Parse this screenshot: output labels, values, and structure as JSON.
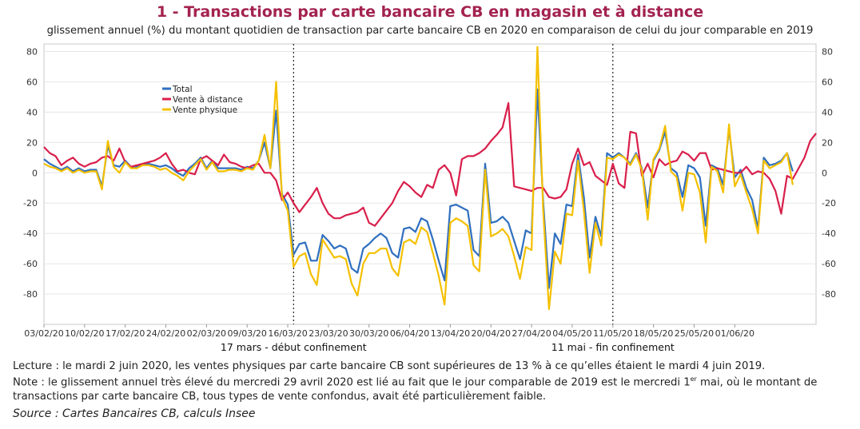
{
  "title": "1 - Transactions par carte bancaire CB en magasin et à distance",
  "subtitle": "glissement annuel (%) du montant quotidien de transaction par carte bancaire CB en 2020 en comparaison de celui du jour comparable en 2019",
  "footer": {
    "lecture": "Lecture : le mardi 2 juin 2020, les ventes physiques par carte bancaire CB sont supérieures de 13 % à ce qu’elles étaient le mardi 4 juin 2019.",
    "note_part1": "Note : le glissement annuel très élevé du mercredi 29 avril 2020 est lié au fait que le jour comparable de 2019 est le mercredi 1",
    "note_sup": "er",
    "note_part2": " mai, où le montant de",
    "note_line2": "transactions par carte bancaire CB, tous types de vente confondus, avait été particulièrement faible.",
    "source": "Source : Cartes Bancaires CB, calculs Insee"
  },
  "chart_data": {
    "type": "line",
    "start_date": "2020-02-03",
    "ylim": [
      -100,
      85
    ],
    "yticks": [
      80,
      60,
      40,
      20,
      0,
      -20,
      -40,
      -60,
      -80
    ],
    "xtick_labels": [
      "03/02/20",
      "10/02/20",
      "17/02/20",
      "24/02/20",
      "02/03/20",
      "09/03/20",
      "16/03/20",
      "23/03/20",
      "30/03/20",
      "06/04/20",
      "13/04/20",
      "20/04/20",
      "27/04/20",
      "04/05/20",
      "11/05/20",
      "18/05/20",
      "25/05/20",
      "01/06/20"
    ],
    "annotations": [
      {
        "date": "2020-03-17",
        "label": "17 mars - début confinement"
      },
      {
        "date": "2020-05-11",
        "label": "11 mai - fin confinement"
      }
    ],
    "legend": "top-left",
    "series": [
      {
        "name": "Total",
        "color": "#2f6fbf",
        "values": [
          9,
          6,
          4,
          2,
          4,
          1,
          3,
          1,
          2,
          2,
          -9,
          18,
          5,
          4,
          8,
          4,
          4,
          5,
          6,
          5,
          4,
          5,
          3,
          0,
          -2,
          3,
          6,
          10,
          3,
          8,
          3,
          3,
          3,
          3,
          2,
          4,
          3,
          8,
          20,
          3,
          41,
          -14,
          -21,
          -54,
          -47,
          -46,
          -58,
          -58,
          -41,
          -45,
          -50,
          -48,
          -50,
          -63,
          -66,
          -50,
          -47,
          -43,
          -40,
          -43,
          -53,
          -56,
          -37,
          -36,
          -39,
          -30,
          -32,
          -44,
          -58,
          -71,
          -22,
          -21,
          -23,
          -25,
          -51,
          -55,
          6,
          -33,
          -32,
          -29,
          -33,
          -45,
          -57,
          -38,
          -40,
          55,
          -19,
          -76,
          -40,
          -47,
          -21,
          -22,
          12,
          -16,
          -56,
          -29,
          -42,
          13,
          10,
          13,
          10,
          6,
          13,
          3,
          -23,
          8,
          15,
          27,
          3,
          0,
          -16,
          5,
          3,
          -3,
          -35,
          5,
          3,
          -8,
          29,
          -3,
          2,
          -10,
          -18,
          -37,
          10,
          5,
          6,
          8,
          13,
          1
        ]
      },
      {
        "name": "Vente à distance",
        "color": "#d91f4b",
        "values": [
          17,
          13,
          11,
          5,
          8,
          10,
          6,
          4,
          6,
          7,
          10,
          11,
          8,
          16,
          7,
          4,
          5,
          6,
          7,
          8,
          10,
          13,
          6,
          1,
          2,
          0,
          -1,
          9,
          11,
          8,
          5,
          12,
          7,
          6,
          4,
          3,
          5,
          6,
          0,
          0,
          -5,
          -18,
          -13,
          -20,
          -26,
          -21,
          -16,
          -10,
          -20,
          -27,
          -30,
          -30,
          -28,
          -27,
          -26,
          -23,
          -33,
          -35,
          -30,
          -25,
          -20,
          -12,
          -6,
          -9,
          -13,
          -16,
          -8,
          -10,
          2,
          5,
          0,
          -15,
          9,
          11,
          11,
          13,
          16,
          21,
          25,
          30,
          46,
          -9,
          -10,
          -11,
          -12,
          -10,
          -10,
          -16,
          -17,
          -16,
          -11,
          6,
          16,
          5,
          7,
          -2,
          -5,
          -8,
          6,
          -7,
          -10,
          27,
          26,
          -2,
          6,
          -3,
          9,
          5,
          7,
          8,
          14,
          12,
          8,
          13,
          13,
          2,
          3,
          2,
          1,
          0,
          0,
          4,
          -1,
          1,
          0,
          -4,
          -12,
          -27,
          -2,
          -4,
          3,
          10,
          21,
          26
        ]
      },
      {
        "name": "Vente physique",
        "color": "#f5c000",
        "values": [
          6,
          4,
          3,
          1,
          3,
          0,
          2,
          0,
          1,
          1,
          -11,
          21,
          4,
          0,
          7,
          3,
          3,
          5,
          5,
          4,
          2,
          3,
          0,
          -2,
          -5,
          1,
          5,
          9,
          2,
          7,
          1,
          1,
          2,
          2,
          1,
          3,
          2,
          8,
          25,
          3,
          60,
          -16,
          -25,
          -62,
          -55,
          -53,
          -67,
          -74,
          -44,
          -50,
          -56,
          -55,
          -57,
          -73,
          -81,
          -60,
          -53,
          -53,
          -50,
          -50,
          -63,
          -68,
          -46,
          -44,
          -47,
          -36,
          -39,
          -53,
          -68,
          -87,
          -33,
          -30,
          -32,
          -35,
          -61,
          -65,
          2,
          -42,
          -40,
          -37,
          -42,
          -55,
          -70,
          -49,
          -51,
          83,
          -25,
          -90,
          -52,
          -60,
          -27,
          -28,
          8,
          -25,
          -66,
          -33,
          -48,
          10,
          9,
          12,
          10,
          5,
          12,
          2,
          -31,
          9,
          16,
          31,
          1,
          -3,
          -25,
          0,
          -1,
          -13,
          -46,
          4,
          1,
          -13,
          32,
          -9,
          -1,
          -13,
          -24,
          -40,
          8,
          3,
          5,
          7,
          13,
          -8
        ]
      }
    ]
  }
}
